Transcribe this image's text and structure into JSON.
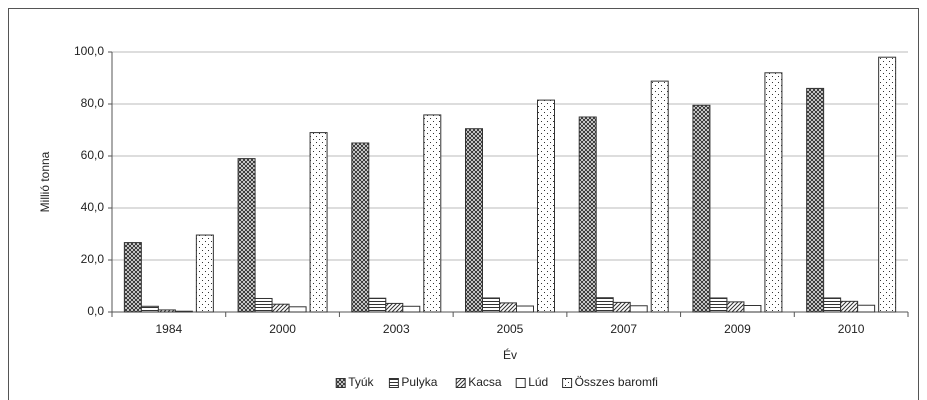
{
  "chart_data": {
    "type": "bar",
    "y_label": "Millió tonna",
    "x_label": "Év",
    "categories": [
      "1984",
      "2000",
      "2003",
      "2005",
      "2007",
      "2009",
      "2010"
    ],
    "series": [
      {
        "name": "Tyúk",
        "color": "#333333",
        "pattern": "crosshatch",
        "values": [
          26.7,
          59,
          65,
          70.5,
          75,
          79.5,
          86
        ]
      },
      {
        "name": "Pulyka",
        "color": "#333333",
        "pattern": "horizontal",
        "values": [
          2.2,
          5.2,
          5.3,
          5.4,
          5.5,
          5.4,
          5.4
        ]
      },
      {
        "name": "Kacsa",
        "color": "#333333",
        "pattern": "diagonal",
        "values": [
          0.8,
          3,
          3.3,
          3.5,
          3.7,
          3.9,
          4.1
        ]
      },
      {
        "name": "Lúd",
        "color": "#333333",
        "pattern": "none",
        "values": [
          0.3,
          2,
          2.2,
          2.3,
          2.4,
          2.5,
          2.6
        ]
      },
      {
        "name": "Összes baromfi",
        "color": "#333333",
        "pattern": "dots",
        "values": [
          29.6,
          69,
          75.8,
          81.5,
          88.8,
          92,
          98
        ]
      }
    ],
    "ylim": [
      0,
      100
    ],
    "yticks": [
      {
        "value": 0,
        "label": "0,0"
      },
      {
        "value": 20,
        "label": "20,0"
      },
      {
        "value": 40,
        "label": "40,0"
      },
      {
        "value": 60,
        "label": "60,0"
      },
      {
        "value": 80,
        "label": "80,0"
      },
      {
        "value": 100,
        "label": "100,0"
      }
    ],
    "grid": true,
    "legend": "bottom"
  }
}
